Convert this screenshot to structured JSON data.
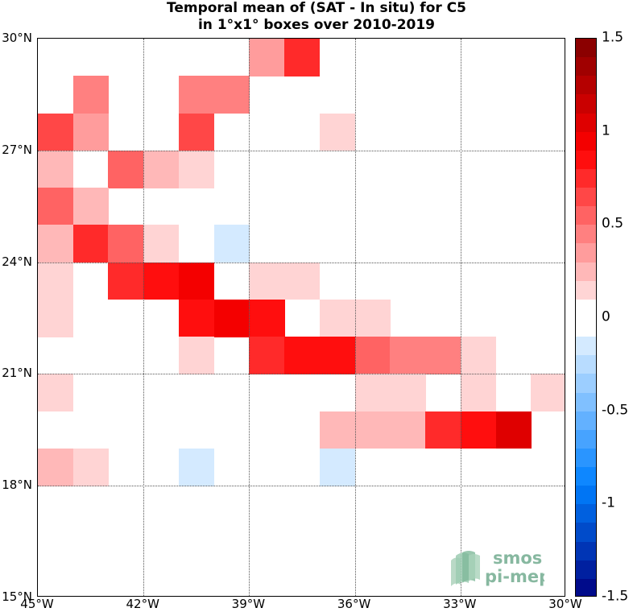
{
  "title_line1": "Temporal mean of (SAT - In situ) for C5",
  "title_line2": "in 1°x1° boxes over 2010-2019",
  "lat_ticks": [
    {
      "value": 30,
      "label": "30°N"
    },
    {
      "value": 27,
      "label": "27°N"
    },
    {
      "value": 24,
      "label": "24°N"
    },
    {
      "value": 21,
      "label": "21°N"
    },
    {
      "value": 18,
      "label": "18°N"
    },
    {
      "value": 15,
      "label": "15°N"
    }
  ],
  "lon_ticks": [
    {
      "value": -45,
      "label": "45°W"
    },
    {
      "value": -42,
      "label": "42°W"
    },
    {
      "value": -39,
      "label": "39°W"
    },
    {
      "value": -36,
      "label": "36°W"
    },
    {
      "value": -33,
      "label": "33°W"
    },
    {
      "value": -30,
      "label": "30°W"
    }
  ],
  "extent": {
    "lon_min": -45,
    "lon_max": -30,
    "lat_min": 15,
    "lat_max": 30
  },
  "colorbar": {
    "min": -1.5,
    "max": 1.5,
    "step": 0.1,
    "ticks": [
      {
        "value": 1.5,
        "label": "1.5"
      },
      {
        "value": 1.0,
        "label": "1"
      },
      {
        "value": 0.5,
        "label": "0.5"
      },
      {
        "value": 0,
        "label": "0"
      },
      {
        "value": -0.5,
        "label": "-0.5"
      },
      {
        "value": -1.0,
        "label": "-1"
      },
      {
        "value": -1.5,
        "label": "-1.5"
      }
    ]
  },
  "logo_text_1": "smos",
  "logo_text_2": "pi-mep",
  "chart_data": {
    "type": "heatmap",
    "cell_size_deg": 1,
    "cells_note": "lon_w / lat_s = south-west corner of each 1°x1° box, value = mean SAT - In situ",
    "cells": [
      {
        "lon_w": -39,
        "lat_s": 29,
        "value": 0.35
      },
      {
        "lon_w": -38,
        "lat_s": 29,
        "value": 0.75
      },
      {
        "lon_w": -44,
        "lat_s": 28,
        "value": 0.45
      },
      {
        "lon_w": -41,
        "lat_s": 28,
        "value": 0.45
      },
      {
        "lon_w": -40,
        "lat_s": 28,
        "value": 0.45
      },
      {
        "lon_w": -45,
        "lat_s": 27,
        "value": 0.65
      },
      {
        "lon_w": -44,
        "lat_s": 27,
        "value": 0.35
      },
      {
        "lon_w": -41,
        "lat_s": 27,
        "value": 0.65
      },
      {
        "lon_w": -37,
        "lat_s": 27,
        "value": 0.15
      },
      {
        "lon_w": -45,
        "lat_s": 26,
        "value": 0.25
      },
      {
        "lon_w": -43,
        "lat_s": 26,
        "value": 0.55
      },
      {
        "lon_w": -42,
        "lat_s": 26,
        "value": 0.25
      },
      {
        "lon_w": -41,
        "lat_s": 26,
        "value": 0.15
      },
      {
        "lon_w": -45,
        "lat_s": 25,
        "value": 0.55
      },
      {
        "lon_w": -44,
        "lat_s": 25,
        "value": 0.25
      },
      {
        "lon_w": -45,
        "lat_s": 24,
        "value": 0.25
      },
      {
        "lon_w": -44,
        "lat_s": 24,
        "value": 0.75
      },
      {
        "lon_w": -43,
        "lat_s": 24,
        "value": 0.55
      },
      {
        "lon_w": -42,
        "lat_s": 24,
        "value": 0.15
      },
      {
        "lon_w": -40,
        "lat_s": 24,
        "value": -0.15
      },
      {
        "lon_w": -45,
        "lat_s": 23,
        "value": 0.15
      },
      {
        "lon_w": -43,
        "lat_s": 23,
        "value": 0.75
      },
      {
        "lon_w": -42,
        "lat_s": 23,
        "value": 0.85
      },
      {
        "lon_w": -41,
        "lat_s": 23,
        "value": 0.95
      },
      {
        "lon_w": -39,
        "lat_s": 23,
        "value": 0.15
      },
      {
        "lon_w": -38,
        "lat_s": 23,
        "value": 0.15
      },
      {
        "lon_w": -45,
        "lat_s": 22,
        "value": 0.15
      },
      {
        "lon_w": -41,
        "lat_s": 22,
        "value": 0.85
      },
      {
        "lon_w": -40,
        "lat_s": 22,
        "value": 0.95
      },
      {
        "lon_w": -39,
        "lat_s": 22,
        "value": 0.85
      },
      {
        "lon_w": -37,
        "lat_s": 22,
        "value": 0.15
      },
      {
        "lon_w": -36,
        "lat_s": 22,
        "value": 0.15
      },
      {
        "lon_w": -41,
        "lat_s": 21,
        "value": 0.15
      },
      {
        "lon_w": -39,
        "lat_s": 21,
        "value": 0.75
      },
      {
        "lon_w": -38,
        "lat_s": 21,
        "value": 0.85
      },
      {
        "lon_w": -37,
        "lat_s": 21,
        "value": 0.85
      },
      {
        "lon_w": -36,
        "lat_s": 21,
        "value": 0.55
      },
      {
        "lon_w": -35,
        "lat_s": 21,
        "value": 0.45
      },
      {
        "lon_w": -34,
        "lat_s": 21,
        "value": 0.45
      },
      {
        "lon_w": -33,
        "lat_s": 21,
        "value": 0.15
      },
      {
        "lon_w": -45,
        "lat_s": 20,
        "value": 0.15
      },
      {
        "lon_w": -36,
        "lat_s": 20,
        "value": 0.15
      },
      {
        "lon_w": -35,
        "lat_s": 20,
        "value": 0.15
      },
      {
        "lon_w": -33,
        "lat_s": 20,
        "value": 0.15
      },
      {
        "lon_w": -31,
        "lat_s": 20,
        "value": 0.15
      },
      {
        "lon_w": -37,
        "lat_s": 19,
        "value": 0.25
      },
      {
        "lon_w": -36,
        "lat_s": 19,
        "value": 0.25
      },
      {
        "lon_w": -35,
        "lat_s": 19,
        "value": 0.25
      },
      {
        "lon_w": -34,
        "lat_s": 19,
        "value": 0.75
      },
      {
        "lon_w": -33,
        "lat_s": 19,
        "value": 0.85
      },
      {
        "lon_w": -32,
        "lat_s": 19,
        "value": 1.05
      },
      {
        "lon_w": -45,
        "lat_s": 18,
        "value": 0.25
      },
      {
        "lon_w": -44,
        "lat_s": 18,
        "value": 0.15
      },
      {
        "lon_w": -41,
        "lat_s": 18,
        "value": -0.15
      },
      {
        "lon_w": -37,
        "lat_s": 18,
        "value": -0.15
      }
    ]
  }
}
